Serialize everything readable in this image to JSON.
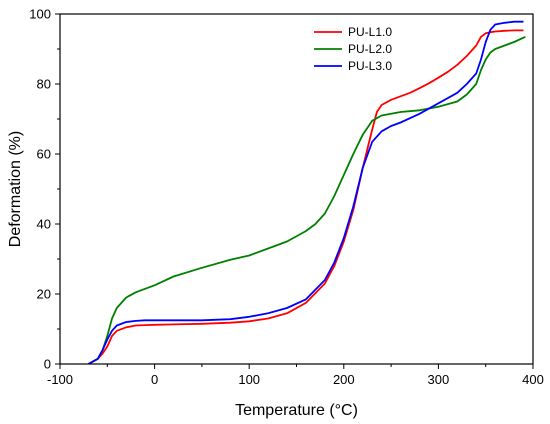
{
  "chart_data": {
    "type": "line",
    "title": "",
    "xlabel": "Temperature (°C)",
    "ylabel": "Deformation (%)",
    "xlim": [
      -100,
      400
    ],
    "ylim": [
      0,
      100
    ],
    "xticks": [
      -100,
      0,
      100,
      200,
      300,
      400
    ],
    "yticks": [
      0,
      20,
      40,
      60,
      80,
      100
    ],
    "xtick_labels": [
      "-100",
      "0",
      "100",
      "200",
      "300",
      "400"
    ],
    "ytick_labels": [
      "0",
      "20",
      "40",
      "60",
      "80",
      "100"
    ],
    "grid": false,
    "legend_position": "top-right",
    "series": [
      {
        "name": "PU-L1.0",
        "color": "#ff0000",
        "x": [
          -70,
          -60,
          -55,
          -50,
          -45,
          -40,
          -30,
          -20,
          -10,
          0,
          20,
          50,
          80,
          100,
          120,
          140,
          160,
          180,
          190,
          200,
          210,
          220,
          230,
          235,
          240,
          250,
          260,
          270,
          280,
          290,
          300,
          310,
          320,
          330,
          340,
          345,
          350,
          355,
          360,
          370,
          380,
          390
        ],
        "y": [
          0,
          1.5,
          3,
          5,
          8,
          9.5,
          10.5,
          11,
          11.1,
          11.2,
          11.3,
          11.5,
          11.8,
          12.2,
          13,
          14.5,
          17.5,
          23,
          28,
          35,
          44,
          56,
          67,
          72,
          74,
          75.5,
          76.5,
          77.5,
          78.8,
          80.2,
          81.8,
          83.5,
          85.5,
          88,
          91,
          93.5,
          94.5,
          94.8,
          95,
          95.2,
          95.3,
          95.3
        ]
      },
      {
        "name": "PU-L2.0",
        "color": "#008000",
        "x": [
          -70,
          -60,
          -55,
          -50,
          -45,
          -40,
          -30,
          -20,
          -10,
          0,
          20,
          50,
          80,
          100,
          120,
          140,
          160,
          170,
          180,
          190,
          200,
          210,
          220,
          230,
          240,
          250,
          260,
          280,
          300,
          320,
          330,
          340,
          345,
          350,
          355,
          360,
          380,
          392
        ],
        "y": [
          0,
          1.5,
          4,
          8,
          13,
          16,
          19,
          20.5,
          21.5,
          22.5,
          25,
          27.5,
          29.8,
          31,
          33,
          35,
          38,
          40,
          43,
          48,
          54,
          60,
          65.5,
          69.5,
          71,
          71.5,
          72,
          72.5,
          73.5,
          75,
          77,
          80,
          84,
          87,
          89,
          90,
          92,
          93.5
        ]
      },
      {
        "name": "PU-L3.0",
        "color": "#0000ff",
        "x": [
          -70,
          -60,
          -55,
          -50,
          -45,
          -40,
          -30,
          -20,
          -10,
          0,
          20,
          50,
          80,
          100,
          120,
          140,
          160,
          180,
          190,
          200,
          210,
          220,
          230,
          240,
          250,
          260,
          280,
          300,
          320,
          330,
          340,
          345,
          350,
          355,
          360,
          370,
          380,
          390
        ],
        "y": [
          0,
          1.5,
          4,
          7,
          9.5,
          11,
          12,
          12.3,
          12.5,
          12.5,
          12.5,
          12.5,
          12.8,
          13.5,
          14.5,
          16,
          18.5,
          24,
          29,
          36,
          45,
          56,
          63.5,
          66.5,
          68,
          69,
          71.5,
          74.5,
          77.5,
          80,
          83,
          87,
          92,
          95.5,
          97,
          97.5,
          97.8,
          97.8
        ]
      }
    ]
  }
}
